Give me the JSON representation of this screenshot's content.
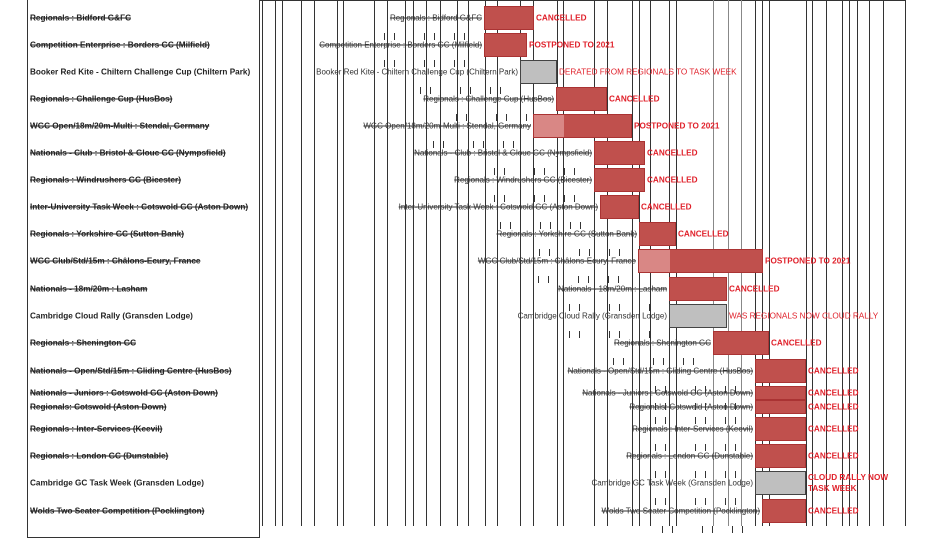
{
  "chart_data": {
    "type": "gantt",
    "title": "",
    "rows": [
      {
        "label": "Regionals : Bidford G&FC",
        "status": "CANCELLED",
        "struck": true,
        "kind": "red"
      },
      {
        "label": "Competition Enterprise : Borders GC (Milfield)",
        "status": "POSTPONED TO 2021",
        "struck": true,
        "kind": "red"
      },
      {
        "label": "Booker Red Kite - Chiltern Challenge Cup (Chiltern Park)",
        "status": "DERATED FROM REGIONALS TO TASK WEEK",
        "struck": false,
        "kind": "grey"
      },
      {
        "label": "Regionals : Challenge Cup (HusBos)",
        "status": "CANCELLED",
        "struck": true,
        "kind": "red"
      },
      {
        "label": "WGC Open/18m/20m-Multi : Stendal, Germany",
        "status": "POSTPONED TO 2021",
        "struck": true,
        "kind": "red"
      },
      {
        "label": "Nationals - Club : Bristol & Glouc GC (Nympsfield)",
        "status": "CANCELLED",
        "struck": true,
        "kind": "red"
      },
      {
        "label": "Regionals : Windrushers GC (Bicester)",
        "status": "CANCELLED",
        "struck": true,
        "kind": "red"
      },
      {
        "label": "Inter-University Task Week : Cotswold GC (Aston Down)",
        "status": "CANCELLED",
        "struck": true,
        "kind": "red"
      },
      {
        "label": "Regionals : Yorkshire GC (Sutton Bank)",
        "status": "CANCELLED",
        "struck": true,
        "kind": "red"
      },
      {
        "label": "WGC Club/Std/15m : Châlons-Ecury, France",
        "status": "POSTPONED TO 2021",
        "struck": true,
        "kind": "red"
      },
      {
        "label": "Nationals - 18m/20m : Lasham",
        "status": "CANCELLED",
        "struck": true,
        "kind": "red"
      },
      {
        "label": "Cambridge Cloud Rally (Gransden Lodge)",
        "status": "WAS REGIONALS NOW CLOUD RALLY",
        "struck": false,
        "kind": "grey"
      },
      {
        "label": "Regionals : Shenington GC",
        "status": "CANCELLED",
        "struck": true,
        "kind": "red"
      },
      {
        "label": "Nationals - Open/Std/15m : Gliding Centre (HusBos)",
        "status": "CANCELLED",
        "struck": true,
        "kind": "red"
      },
      {
        "label": "Nationals - Juniors : Cotswold GC (Aston Down)",
        "status": "CANCELLED",
        "struck": true,
        "kind": "red"
      },
      {
        "label": "Regionals: Cotswold (Aston Down)",
        "status": "CANCELLED",
        "struck": true,
        "kind": "red"
      },
      {
        "label": "Regionals : Inter-Services (Keevil)",
        "status": "CANCELLED",
        "struck": true,
        "kind": "red"
      },
      {
        "label": "Regionals : London GC (Dunstable)",
        "status": "CANCELLED",
        "struck": true,
        "kind": "red"
      },
      {
        "label": "Cambridge GC Task Week (Gransden Lodge)",
        "status": "CLOUD RALLY NOW TASK WEEK",
        "status_lines": [
          "CLOUD RALLY NOW",
          "TASK WEEK"
        ],
        "struck": false,
        "kind": "grey"
      },
      {
        "label": "Wolds Two Seater Competition (Pocklington)",
        "status": "CANCELLED",
        "struck": true,
        "kind": "red"
      }
    ],
    "colors": {
      "cancelled": "#c0504d",
      "changed": "#bfbfbf",
      "status_text": "#e0202a"
    }
  }
}
